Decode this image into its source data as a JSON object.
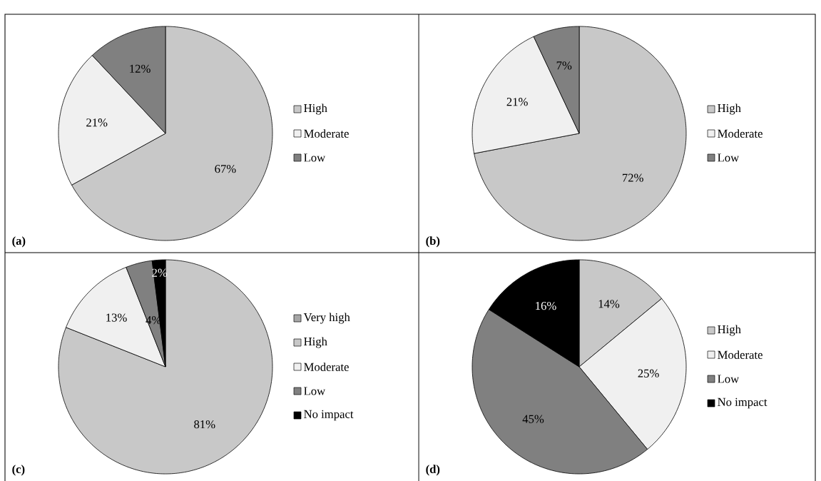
{
  "chart_data": [
    {
      "type": "pie",
      "categories": [
        "High",
        "Moderate",
        "Low"
      ],
      "values": [
        67,
        21,
        12
      ],
      "colors": [
        "#c8c8c8",
        "#f0f0f0",
        "#808080"
      ],
      "value_labels": [
        "67%",
        "21%",
        "12%"
      ],
      "legend": "right",
      "annotations": [
        "(a)"
      ]
    },
    {
      "type": "pie",
      "categories": [
        "High",
        "Moderate",
        "Low"
      ],
      "values": [
        72,
        21,
        7
      ],
      "colors": [
        "#c8c8c8",
        "#f0f0f0",
        "#808080"
      ],
      "value_labels": [
        "72%",
        "21%",
        "7%"
      ],
      "legend": "right",
      "annotations": [
        "(b)"
      ]
    },
    {
      "type": "pie",
      "categories": [
        "Very high",
        "High",
        "Moderate",
        "Low",
        "No impact"
      ],
      "values": [
        0,
        81,
        13,
        4,
        2
      ],
      "colors": [
        "#a6a6a6",
        "#c8c8c8",
        "#f0f0f0",
        "#808080",
        "#000000"
      ],
      "value_labels": [
        null,
        "81%",
        "13%",
        "4%",
        "2%"
      ],
      "legend": "right",
      "annotations": [
        "(c)"
      ]
    },
    {
      "type": "pie",
      "categories": [
        "High",
        "Moderate",
        "Low",
        "No impact"
      ],
      "values": [
        14,
        25,
        45,
        16
      ],
      "colors": [
        "#c8c8c8",
        "#f0f0f0",
        "#808080",
        "#000000"
      ],
      "value_labels": [
        "14%",
        "25%",
        "45%",
        "16%"
      ],
      "legend": "right",
      "annotations": [
        "(d)"
      ]
    }
  ]
}
